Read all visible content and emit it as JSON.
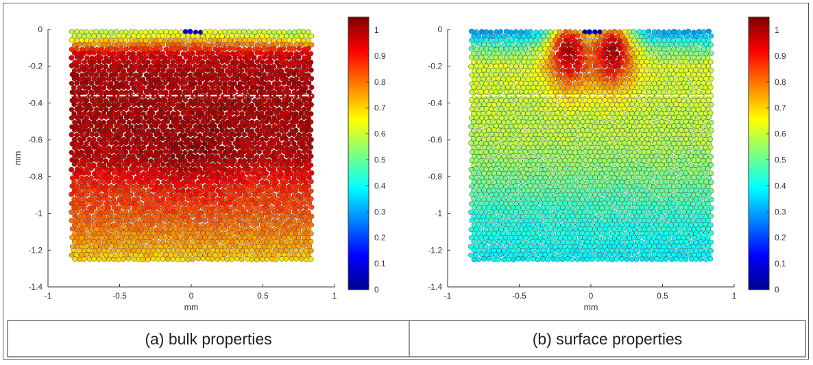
{
  "chart_data": [
    {
      "type": "heatmap",
      "plot_style": "particle scatter (circles colored by value)",
      "caption": "(a) bulk properties",
      "xlabel": "mm",
      "ylabel": "mm",
      "xlim": [
        -1,
        1
      ],
      "ylim": [
        -1.4,
        0
      ],
      "xticks": [
        "-1",
        "-0.5",
        "0",
        "0.5",
        "1"
      ],
      "yticks": [
        "0",
        "-0.2",
        "-0.4",
        "-0.6",
        "-0.8",
        "-1",
        "-1.2",
        "-1.4"
      ],
      "particle_region": {
        "x": [
          -0.85,
          0.85
        ],
        "y": [
          -1.26,
          0
        ]
      },
      "reference_line": {
        "y": -0.36,
        "style": "dash-dot",
        "color": "#ffffff"
      },
      "colorbar": {
        "colormap": "jet",
        "range": [
          0,
          1.05
        ],
        "ticks": [
          "0",
          "0.1",
          "0.2",
          "0.3",
          "0.4",
          "0.5",
          "0.6",
          "0.7",
          "0.8",
          "0.9",
          "1"
        ]
      },
      "value_profile": {
        "depth_mm": [
          0,
          -0.04,
          -0.08,
          -0.14,
          -0.25,
          -0.5,
          -0.7,
          -0.85,
          -1.0,
          -1.15,
          -1.26
        ],
        "value": [
          0.62,
          0.68,
          0.82,
          0.96,
          1.0,
          1.0,
          0.98,
          0.88,
          0.83,
          0.76,
          0.7
        ]
      },
      "notes": "Dark red (~1.0) through most of the body; yellow-green (~0.6) near top surface and bottom; small blue indentation zone at x~0, y~0."
    },
    {
      "type": "heatmap",
      "plot_style": "particle scatter (circles colored by value)",
      "caption": "(b) surface properties",
      "xlabel": "mm",
      "ylabel": "",
      "xlim": [
        -1,
        1
      ],
      "ylim": [
        -1.4,
        0
      ],
      "xticks": [
        "-1",
        "-0.5",
        "0",
        "0.5",
        "1"
      ],
      "yticks": [
        "0",
        "-0.2",
        "-0.4",
        "-0.6",
        "-0.8",
        "-1",
        "-1.2",
        "-1.4"
      ],
      "particle_region": {
        "x": [
          -0.85,
          0.85
        ],
        "y": [
          -1.26,
          0
        ]
      },
      "reference_line": {
        "y": -0.36,
        "style": "dashed",
        "color": "#ffffff"
      },
      "colorbar": {
        "colormap": "jet",
        "range": [
          0,
          1.05
        ],
        "ticks": [
          "0",
          "0.1",
          "0.2",
          "0.3",
          "0.4",
          "0.5",
          "0.6",
          "0.7",
          "0.8",
          "0.9",
          "1"
        ]
      },
      "value_profile": {
        "depth_mm": [
          0,
          -0.04,
          -0.1,
          -0.2,
          -0.4,
          -0.6,
          -0.8,
          -1.0,
          -1.26
        ],
        "value": [
          0.28,
          0.35,
          0.5,
          0.62,
          0.6,
          0.58,
          0.52,
          0.44,
          0.38
        ]
      },
      "hotspots": [
        {
          "x": -0.15,
          "y": -0.12,
          "value": 1.0
        },
        {
          "x": 0.15,
          "y": -0.12,
          "value": 1.0
        }
      ],
      "notes": "Blue (~0.3) band at the top surface, two dark-red lobes just beneath the indentation, green-yellow mid-depth, cyan near the bottom."
    }
  ]
}
